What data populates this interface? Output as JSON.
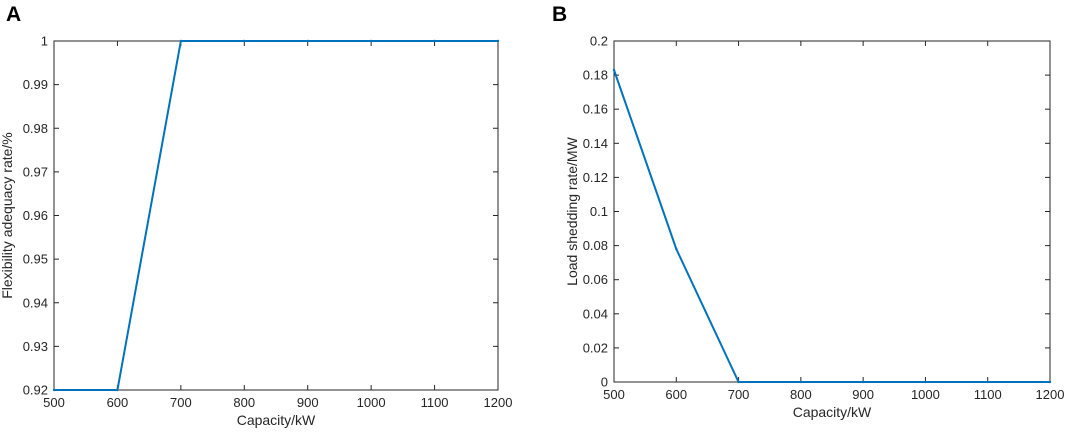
{
  "chart_data": [
    {
      "panel": "A",
      "type": "line",
      "xlabel": "Capacity/kW",
      "ylabel": "Flexibility adequacy rate/%",
      "xlim": [
        500,
        1200
      ],
      "ylim": [
        0.92,
        1
      ],
      "xticks": [
        "500",
        "600",
        "700",
        "800",
        "900",
        "1000",
        "1100",
        "1200"
      ],
      "yticks": [
        "0.92",
        "0.93",
        "0.94",
        "0.95",
        "0.96",
        "0.97",
        "0.98",
        "0.99",
        "1"
      ],
      "color": "#0072BD",
      "x": [
        500,
        600,
        700,
        800,
        900,
        1000,
        1100,
        1200
      ],
      "y": [
        0.92,
        0.92,
        1.0,
        1.0,
        1.0,
        1.0,
        1.0,
        1.0
      ],
      "grid": false,
      "box": true
    },
    {
      "panel": "B",
      "type": "line",
      "xlabel": "Capacity/kW",
      "ylabel": "Load shedding rate/MW",
      "xlim": [
        500,
        1200
      ],
      "ylim": [
        0,
        0.2
      ],
      "xticks": [
        "500",
        "600",
        "700",
        "800",
        "900",
        "1000",
        "1100",
        "1200"
      ],
      "yticks": [
        "0",
        "0.02",
        "0.04",
        "0.06",
        "0.08",
        "0.1",
        "0.12",
        "0.14",
        "0.16",
        "0.18",
        "0.2"
      ],
      "color": "#0072BD",
      "x": [
        500,
        600,
        700,
        800,
        900,
        1000,
        1100,
        1200
      ],
      "y": [
        0.183,
        0.078,
        0.0,
        0.0,
        0.0,
        0.0,
        0.0,
        0.0
      ],
      "grid": false,
      "box": true
    }
  ]
}
